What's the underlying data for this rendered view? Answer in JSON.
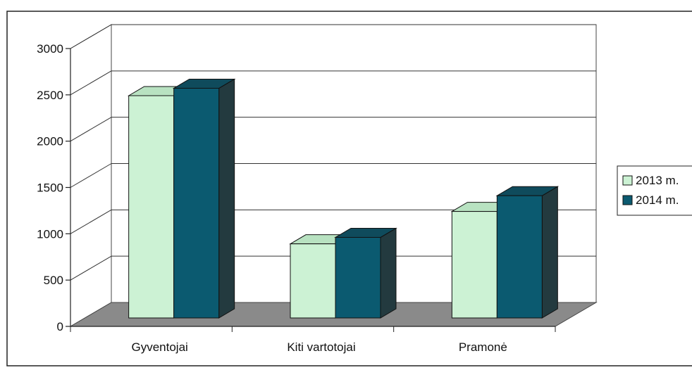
{
  "chart_data": {
    "type": "bar",
    "title": "",
    "xlabel": "",
    "ylabel": "",
    "categories": [
      "Gyventojai",
      "Kiti vartotojai",
      "Pramonė"
    ],
    "series": [
      {
        "name": "2013 m.",
        "values": [
          2400,
          800,
          1150
        ],
        "color": "#ccf2d4"
      },
      {
        "name": "2014 m.",
        "values": [
          2480,
          870,
          1320
        ],
        "color": "#0b5a70"
      }
    ],
    "ylim": [
      0,
      3000
    ],
    "yticks": [
      "0",
      "500",
      "1000",
      "1500",
      "2000",
      "2500",
      "3000"
    ],
    "grid": true,
    "legend": "right",
    "projection": "3d"
  }
}
